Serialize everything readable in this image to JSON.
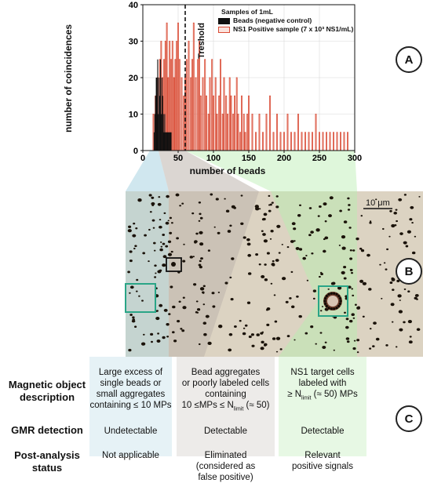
{
  "panel_labels": [
    "A",
    "B",
    "C"
  ],
  "chart_data": {
    "type": "bar",
    "title": "",
    "xlabel": "number of beads",
    "ylabel": "number of coincidences",
    "xlim": [
      0,
      300
    ],
    "ylim": [
      0,
      40
    ],
    "xticks": [
      0,
      50,
      100,
      150,
      200,
      250,
      300
    ],
    "yticks": [
      0,
      10,
      20,
      30,
      40
    ],
    "legend_title": "Samples of 1mL",
    "legend_position": "top-right",
    "threshold": {
      "x": 60,
      "label": "Treshold",
      "style": "dashed"
    },
    "series": [
      {
        "name": "Beads (negative control)",
        "color": "#111111",
        "style": "filled",
        "x": [
          16,
          17,
          18,
          19,
          20,
          21,
          22,
          23,
          24,
          25,
          26,
          27,
          28,
          29,
          30,
          31,
          32,
          33,
          34,
          35,
          36,
          37,
          38,
          39,
          40
        ],
        "values": [
          5,
          10,
          15,
          20,
          20,
          25,
          10,
          20,
          15,
          25,
          10,
          20,
          15,
          10,
          5,
          10,
          5,
          5,
          5,
          5,
          5,
          5,
          5,
          5,
          5
        ]
      },
      {
        "name": "NS1 Positive sample (7 x 10³ NS1/mL)",
        "color": "#d94b35",
        "style": "outline",
        "x": [
          15,
          18,
          21,
          24,
          26,
          28,
          30,
          32,
          34,
          36,
          38,
          40,
          42,
          44,
          46,
          48,
          50,
          52,
          55,
          58,
          60,
          62,
          65,
          68,
          70,
          72,
          75,
          78,
          80,
          82,
          85,
          88,
          90,
          93,
          95,
          98,
          100,
          103,
          105,
          108,
          110,
          113,
          115,
          118,
          120,
          123,
          125,
          128,
          130,
          133,
          135,
          138,
          140,
          143,
          145,
          148,
          150,
          155,
          160,
          165,
          170,
          175,
          180,
          185,
          190,
          195,
          200,
          205,
          210,
          215,
          220,
          225,
          230,
          235,
          240,
          245,
          250,
          255,
          260,
          265,
          270,
          275,
          280,
          285,
          290
        ],
        "values": [
          10,
          15,
          20,
          25,
          30,
          20,
          25,
          30,
          35,
          20,
          30,
          25,
          30,
          20,
          25,
          30,
          35,
          25,
          20,
          15,
          20,
          25,
          30,
          20,
          25,
          35,
          20,
          25,
          30,
          15,
          20,
          25,
          15,
          10,
          20,
          25,
          15,
          20,
          10,
          15,
          25,
          10,
          20,
          15,
          10,
          20,
          15,
          10,
          15,
          20,
          10,
          5,
          15,
          10,
          5,
          10,
          15,
          10,
          5,
          10,
          5,
          10,
          15,
          5,
          10,
          5,
          5,
          10,
          5,
          5,
          10,
          5,
          5,
          5,
          5,
          10,
          5,
          5,
          5,
          5,
          5,
          5,
          5,
          5,
          5
        ]
      }
    ]
  },
  "micrograph": {
    "scale_bar_label": "10 μm",
    "region_colors": {
      "blue": "#a9d4e2",
      "grey": "#bdb5ad",
      "green": "#b8edb0"
    },
    "background": "#dcd3c2"
  },
  "table": {
    "rows": [
      {
        "label_lines": [
          "Magnetic object",
          "description"
        ],
        "cells": [
          {
            "lines": [
              "Large excess of",
              "single beads or",
              "small aggregates",
              "containing ≤ 10 MPs"
            ]
          },
          {
            "lines": [
              "Bead aggregates",
              "or poorly labeled cells",
              "containing"
            ],
            "formula": {
              "pre": "10 ≤MPs ≤ N",
              "sub": "limit",
              "post": " (≈ 50)"
            }
          },
          {
            "lines": [
              "NS1 target cells",
              "labeled with"
            ],
            "formula": {
              "pre": "≥ N",
              "sub": "limit",
              "post": " (≈ 50) MPs"
            }
          }
        ]
      },
      {
        "label_lines": [
          "GMR detection"
        ],
        "cells": [
          {
            "lines": [
              "Undetectable"
            ]
          },
          {
            "lines": [
              "Detectable"
            ]
          },
          {
            "lines": [
              "Detectable"
            ]
          }
        ]
      },
      {
        "label_lines": [
          "Post-analysis status"
        ],
        "cells": [
          {
            "lines": [
              "Not applicable"
            ]
          },
          {
            "lines": [
              "Eliminated",
              "(considered as",
              "false positive)"
            ]
          },
          {
            "lines": [
              "Relevant",
              "positive signals"
            ]
          }
        ]
      }
    ],
    "column_colors": [
      "#dcecf2",
      "#e7e4e1",
      "#ddf5d8"
    ]
  }
}
